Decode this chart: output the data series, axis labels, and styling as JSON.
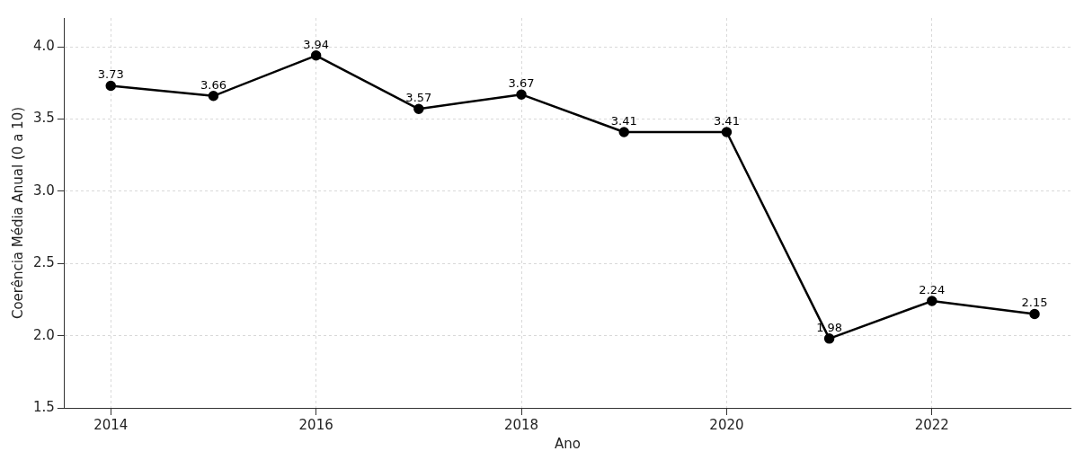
{
  "chart_data": {
    "type": "line",
    "xlabel": "Ano",
    "ylabel": "Coerência Média Anual (0 a 10)",
    "x": [
      2014,
      2015,
      2016,
      2017,
      2018,
      2019,
      2020,
      2021,
      2022,
      2023
    ],
    "series": [
      {
        "color": "#000000",
        "values": [
          3.73,
          3.66,
          3.94,
          3.57,
          3.67,
          3.41,
          3.41,
          1.98,
          2.24,
          2.15
        ]
      }
    ],
    "xlim": [
      2013.55,
      2023.35
    ],
    "xticks": [
      2014,
      2016,
      2018,
      2020,
      2022
    ],
    "ylim": [
      1.5,
      4.2
    ],
    "yticks": [
      {
        "value": 1.5,
        "label": "1.5"
      },
      {
        "value": 2,
        "label": "2.0"
      },
      {
        "value": 2.5,
        "label": "2.5"
      },
      {
        "value": 3,
        "label": "3.0"
      },
      {
        "value": 3.5,
        "label": "3.5"
      },
      {
        "value": 4,
        "label": "4.0"
      }
    ],
    "grid": true,
    "marker": "circle",
    "line_style": "solid",
    "data_labels": true
  }
}
